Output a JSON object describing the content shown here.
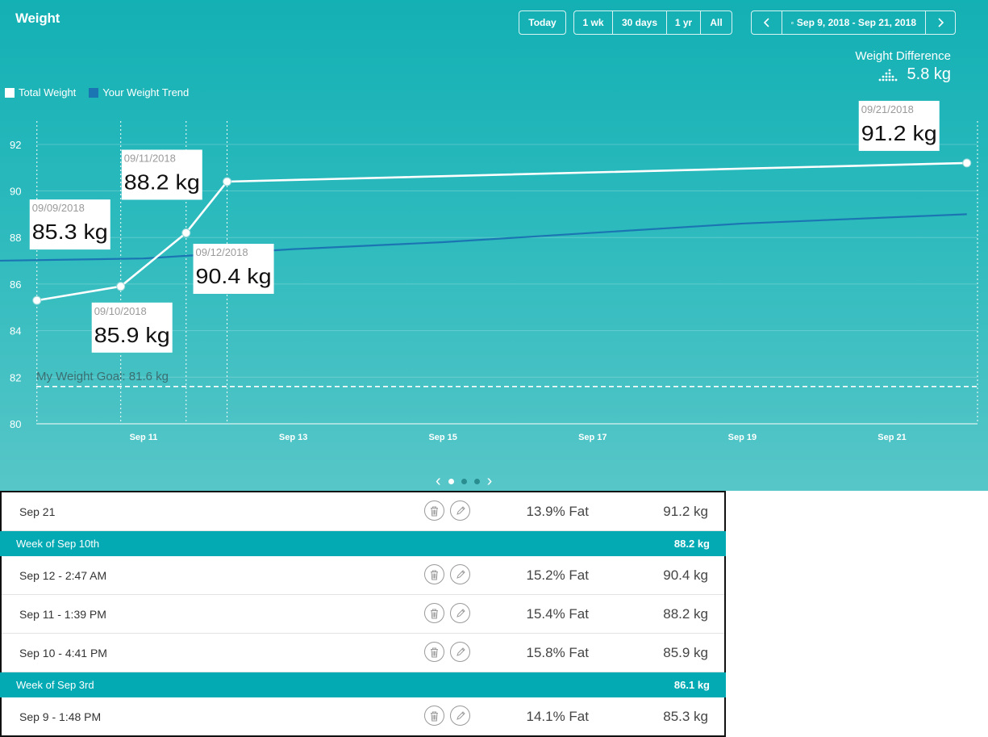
{
  "header": {
    "title": "Weight",
    "today_label": "Today",
    "ranges": [
      "1 wk",
      "30 days",
      "1 yr",
      "All"
    ],
    "date_range": "Sep 9, 2018 - Sep 21, 2018",
    "weight_difference_label": "Weight Difference",
    "weight_difference_value": "5.8 kg"
  },
  "legend": {
    "total_weight": "Total Weight",
    "trend": "Your Weight Trend"
  },
  "colors": {
    "total_line": "#ffffff",
    "trend_line": "#1b75b3",
    "goal_line": "#ffffff",
    "week_bar": "#03aab4"
  },
  "chart_data": {
    "type": "line",
    "ylim": [
      80,
      93
    ],
    "y_ticks": [
      80,
      82,
      84,
      86,
      88,
      90,
      92
    ],
    "x_range": [
      "2018-09-09",
      "2018-09-21"
    ],
    "x_tick_labels": [
      {
        "date": "2018-09-11",
        "label": "Sep 11"
      },
      {
        "date": "2018-09-13",
        "label": "Sep 13"
      },
      {
        "date": "2018-09-15",
        "label": "Sep 15"
      },
      {
        "date": "2018-09-17",
        "label": "Sep 17"
      },
      {
        "date": "2018-09-19",
        "label": "Sep 19"
      },
      {
        "date": "2018-09-21",
        "label": "Sep 21"
      }
    ],
    "series": [
      {
        "name": "Total Weight",
        "points": [
          {
            "x": "2018-09-09T13:48",
            "y": 85.3,
            "date_label": "09/09/2018",
            "value_label": "85.3 kg"
          },
          {
            "x": "2018-09-10T16:41",
            "y": 85.9,
            "date_label": "09/10/2018",
            "value_label": "85.9 kg"
          },
          {
            "x": "2018-09-11T13:39",
            "y": 88.2,
            "date_label": "09/11/2018",
            "value_label": "88.2 kg"
          },
          {
            "x": "2018-09-12T02:47",
            "y": 90.4,
            "date_label": "09/12/2018",
            "value_label": "90.4 kg"
          },
          {
            "x": "2018-09-21T23:59",
            "y": 91.2,
            "date_label": "09/21/2018",
            "value_label": "91.2 kg"
          }
        ]
      },
      {
        "name": "Your Weight Trend",
        "points": [
          {
            "x": "2018-09-09T00:00",
            "y": 87.0
          },
          {
            "x": "2018-09-11T00:00",
            "y": 87.1
          },
          {
            "x": "2018-09-13T00:00",
            "y": 87.5
          },
          {
            "x": "2018-09-15T00:00",
            "y": 87.8
          },
          {
            "x": "2018-09-17T00:00",
            "y": 88.2
          },
          {
            "x": "2018-09-19T00:00",
            "y": 88.6
          },
          {
            "x": "2018-09-21T23:59",
            "y": 89.0
          }
        ]
      }
    ],
    "goal": {
      "y": 81.6,
      "label": "My Weight Goal: 81.6 kg"
    }
  },
  "entries": [
    {
      "kind": "row",
      "date": "Sep 21",
      "fat": "13.9% Fat",
      "weight": "91.2 kg"
    },
    {
      "kind": "week",
      "label": "Week of Sep 10th",
      "weight": "88.2 kg"
    },
    {
      "kind": "row",
      "date": "Sep 12 - 2:47 AM",
      "fat": "15.2% Fat",
      "weight": "90.4 kg"
    },
    {
      "kind": "row",
      "date": "Sep 11 - 1:39 PM",
      "fat": "15.4% Fat",
      "weight": "88.2 kg"
    },
    {
      "kind": "row",
      "date": "Sep 10 - 4:41 PM",
      "fat": "15.8% Fat",
      "weight": "85.9 kg"
    },
    {
      "kind": "week",
      "label": "Week of Sep 3rd",
      "weight": "86.1 kg"
    },
    {
      "kind": "row",
      "date": "Sep 9 - 1:48 PM",
      "fat": "14.1% Fat",
      "weight": "85.3 kg"
    }
  ],
  "icons": {
    "delete": "trash-icon",
    "edit": "pencil-icon",
    "calendar": "calendar-icon",
    "weight_difference": "scale-dots-icon"
  }
}
